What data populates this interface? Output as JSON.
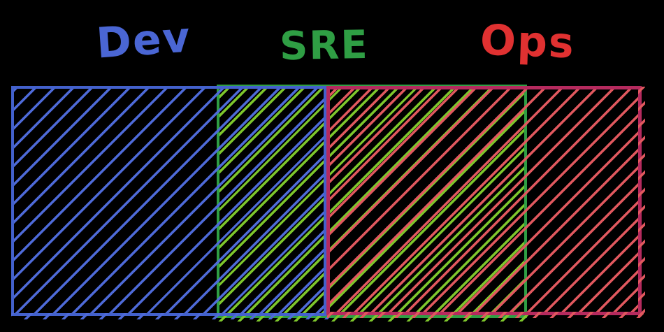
{
  "canvas": {
    "background": "#000000"
  },
  "colors": {
    "canvas-bg": "#000000",
    "dev-label": "#4a66d4",
    "dev-stroke": "#4361cc",
    "dev-hatch": "#4e6ad8",
    "sre-label": "#2f9e44",
    "sre-stroke": "#2f9e44",
    "sre-hatch": "#7ec62c",
    "ops-label": "#e03131",
    "ops-stroke": "#b52a5e",
    "ops-hatch": "#e0585e"
  },
  "regions": [
    {
      "id": "dev",
      "label": "Dev"
    },
    {
      "id": "sre",
      "label": "SRE"
    },
    {
      "id": "ops",
      "label": "Ops"
    }
  ]
}
